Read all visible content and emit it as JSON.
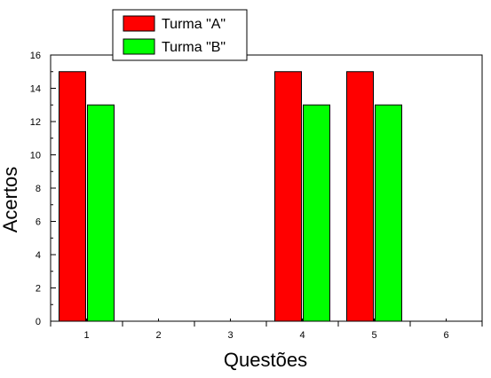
{
  "chart_data": {
    "type": "bar",
    "xlabel": "Questões",
    "ylabel": "Acertos",
    "categories": [
      "1",
      "2",
      "3",
      "4",
      "5",
      "6"
    ],
    "series": [
      {
        "name": "Turma \"A\"",
        "values": [
          15,
          0,
          0,
          15,
          15,
          0
        ],
        "color": "#ff0000"
      },
      {
        "name": "Turma \"B\"",
        "values": [
          13,
          0,
          0,
          13,
          13,
          0
        ],
        "color": "#00ff00"
      }
    ],
    "yticks": [
      "0",
      "2",
      "4",
      "6",
      "8",
      "10",
      "12",
      "14",
      "16"
    ],
    "ylim": [
      0,
      16
    ],
    "grid": false,
    "legend_position": "top-left"
  }
}
